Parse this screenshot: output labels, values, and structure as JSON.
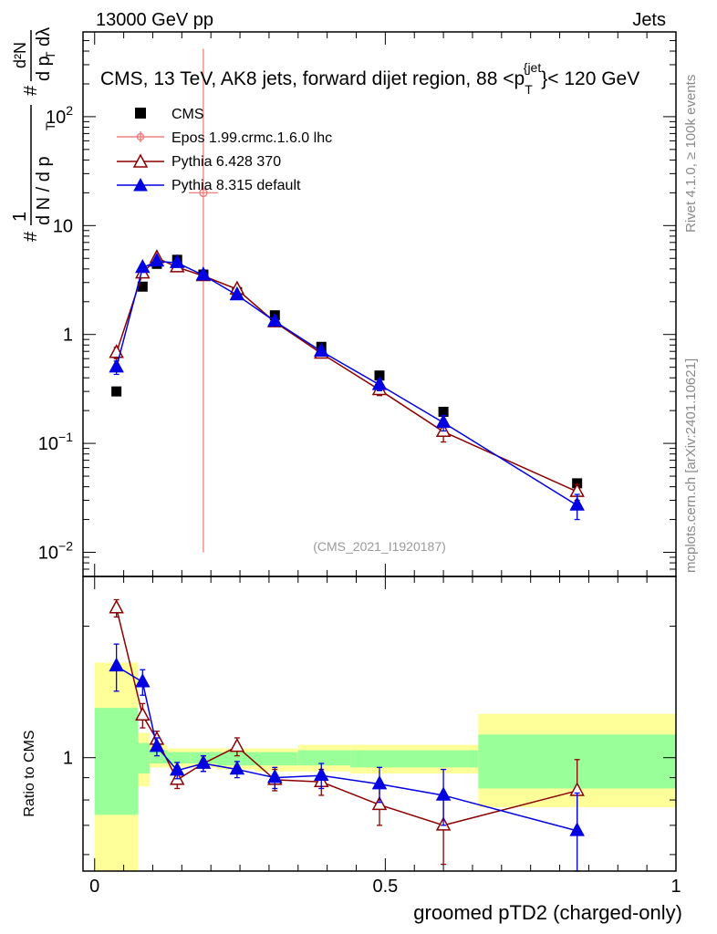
{
  "header": {
    "left": "13000 GeV pp",
    "right": "Jets"
  },
  "side_labels": {
    "rivet": "Rivet 4.1.0, ≥ 100k events",
    "mcplots": "mcplots.cern.ch [arXiv:2401.10621]"
  },
  "colors": {
    "cms": "#000000",
    "epos": "#f08080",
    "pythia6": "#8b0000",
    "pythia8": "#0000e0",
    "band_inner": "#99ff99",
    "band_outer": "#ffff99"
  },
  "chart_data": [
    {
      "type": "scatter",
      "panel": "main",
      "title_parts": {
        "before": "CMS, 13 TeV, AK8 jets, forward dijet region, 88 <p",
        "sub": "T",
        "sup": "{jet",
        "after": "}< 120 GeV"
      },
      "ylabel_parts": {
        "hash1": "#",
        "one": "1",
        "dN": "d N / d p",
        "T1": "T",
        "hash2": "#",
        "d2N": "d²N",
        "dpT": "d p",
        "T2": "T",
        "dl": "dλ"
      },
      "yscale": "log",
      "ylim": [
        0.006,
        600
      ],
      "xlim": [
        -0.02,
        1.0
      ],
      "y_ticks": [
        {
          "value": 0.01,
          "base": "10",
          "exp": "−2"
        },
        {
          "value": 0.1,
          "base": "10",
          "exp": "−1"
        },
        {
          "value": 1,
          "base": "1",
          "exp": ""
        },
        {
          "value": 10,
          "base": "10",
          "exp": ""
        },
        {
          "value": 100,
          "base": "10",
          "exp": "2"
        }
      ],
      "watermark": "(CMS_2021_I1920187)",
      "legend": [
        {
          "key": "cms",
          "label": "CMS"
        },
        {
          "key": "epos",
          "label": "Epos 1.99.crmc.1.6.0 lhc"
        },
        {
          "key": "pythia6",
          "label": "Pythia 6.428 370"
        },
        {
          "key": "pythia8",
          "label": "Pythia 8.315 default"
        }
      ],
      "series": [
        {
          "key": "cms",
          "name": "CMS",
          "x": [
            0.0375,
            0.0825,
            0.107,
            0.142,
            0.187,
            0.245,
            0.31,
            0.39,
            0.49,
            0.6,
            0.83
          ],
          "y": [
            0.3,
            2.75,
            4.45,
            4.85,
            3.55,
            2.45,
            1.5,
            0.77,
            0.42,
            0.195,
            0.043
          ]
        },
        {
          "key": "epos",
          "name": "Epos 1.99.crmc.1.6.0 lhc",
          "x": [
            0.187
          ],
          "y": [
            20
          ],
          "yerr_lo": [
            19.99
          ],
          "yerr_hi": [
            400
          ]
        },
        {
          "key": "pythia6",
          "name": "Pythia 6.428 370",
          "x": [
            0.0375,
            0.0825,
            0.107,
            0.142,
            0.187,
            0.245,
            0.31,
            0.39,
            0.49,
            0.6,
            0.83
          ],
          "y": [
            0.68,
            3.65,
            5.05,
            4.15,
            3.45,
            2.6,
            1.3,
            0.67,
            0.31,
            0.128,
            0.036
          ],
          "yerr_lo": [
            0.08,
            0.25,
            0.25,
            0.2,
            0.15,
            0.15,
            0.08,
            0.05,
            0.035,
            0.025,
            0.006
          ],
          "yerr_hi": [
            0.08,
            0.25,
            0.25,
            0.2,
            0.15,
            0.15,
            0.08,
            0.05,
            0.035,
            0.025,
            0.006
          ]
        },
        {
          "key": "pythia8",
          "name": "Pythia 8.315 default",
          "x": [
            0.0375,
            0.0825,
            0.107,
            0.142,
            0.187,
            0.245,
            0.31,
            0.39,
            0.49,
            0.6,
            0.83
          ],
          "y": [
            0.5,
            4.1,
            4.7,
            4.55,
            3.5,
            2.3,
            1.32,
            0.7,
            0.345,
            0.155,
            0.027
          ],
          "yerr_lo": [
            0.07,
            0.25,
            0.25,
            0.2,
            0.15,
            0.12,
            0.08,
            0.05,
            0.04,
            0.025,
            0.007
          ],
          "yerr_hi": [
            0.07,
            0.25,
            0.25,
            0.2,
            0.15,
            0.12,
            0.08,
            0.05,
            0.04,
            0.025,
            0.007
          ]
        }
      ]
    },
    {
      "type": "scatter",
      "panel": "ratio",
      "ylabel": "Ratio to CMS",
      "xlabel": "groomed pTD2 (charged-only)",
      "yscale": "log",
      "ylim": [
        0.55,
        2.6
      ],
      "xlim": [
        -0.02,
        1.0
      ],
      "y_ticks": [
        {
          "value": 1,
          "label": "1"
        }
      ],
      "x_ticks": [
        {
          "value": 0,
          "label": "0"
        },
        {
          "value": 0.5,
          "label": "0.5"
        },
        {
          "value": 1,
          "label": "1"
        }
      ],
      "bands": [
        {
          "x0": 0.0,
          "x1": 0.075,
          "in_lo": 0.74,
          "in_hi": 1.3,
          "out_lo": 0.5,
          "out_hi": 1.65
        },
        {
          "x0": 0.075,
          "x1": 0.095,
          "in_lo": 0.92,
          "in_hi": 1.08,
          "out_lo": 0.86,
          "out_hi": 1.14
        },
        {
          "x0": 0.095,
          "x1": 0.125,
          "in_lo": 0.97,
          "in_hi": 1.04,
          "out_lo": 0.95,
          "out_hi": 1.07
        },
        {
          "x0": 0.125,
          "x1": 0.165,
          "in_lo": 0.97,
          "in_hi": 1.03,
          "out_lo": 0.95,
          "out_hi": 1.05
        },
        {
          "x0": 0.165,
          "x1": 0.21,
          "in_lo": 0.97,
          "in_hi": 1.03,
          "out_lo": 0.95,
          "out_hi": 1.05
        },
        {
          "x0": 0.21,
          "x1": 0.275,
          "in_lo": 0.96,
          "in_hi": 1.03,
          "out_lo": 0.94,
          "out_hi": 1.05
        },
        {
          "x0": 0.275,
          "x1": 0.35,
          "in_lo": 0.96,
          "in_hi": 1.03,
          "out_lo": 0.93,
          "out_hi": 1.05
        },
        {
          "x0": 0.35,
          "x1": 0.44,
          "in_lo": 0.96,
          "in_hi": 1.04,
          "out_lo": 0.93,
          "out_hi": 1.07
        },
        {
          "x0": 0.44,
          "x1": 0.66,
          "in_lo": 0.95,
          "in_hi": 1.04,
          "out_lo": 0.92,
          "out_hi": 1.07
        },
        {
          "x0": 0.66,
          "x1": 1.0,
          "in_lo": 0.85,
          "in_hi": 1.13,
          "out_lo": 0.77,
          "out_hi": 1.26
        }
      ],
      "series": [
        {
          "key": "pythia6",
          "name": "Pythia 6.428 370",
          "x": [
            0.0375,
            0.0825,
            0.107,
            0.142,
            0.187,
            0.245,
            0.31,
            0.39,
            0.49,
            0.6,
            0.83
          ],
          "y": [
            2.2,
            1.25,
            1.1,
            0.89,
            0.97,
            1.06,
            0.89,
            0.88,
            0.78,
            0.7,
            0.84
          ],
          "yerr_lo": [
            0.1,
            0.08,
            0.05,
            0.04,
            0.04,
            0.05,
            0.05,
            0.06,
            0.08,
            0.13,
            0.15
          ],
          "yerr_hi": [
            0.1,
            0.08,
            0.05,
            0.04,
            0.04,
            0.05,
            0.05,
            0.06,
            0.08,
            0.13,
            0.15
          ]
        },
        {
          "key": "pythia8",
          "name": "Pythia 8.315 default",
          "x": [
            0.0375,
            0.0825,
            0.107,
            0.142,
            0.187,
            0.245,
            0.31,
            0.39,
            0.49,
            0.6,
            0.83
          ],
          "y": [
            1.62,
            1.49,
            1.06,
            0.935,
            0.97,
            0.94,
            0.9,
            0.91,
            0.87,
            0.82,
            0.68
          ],
          "yerr_lo": [
            0.2,
            0.1,
            0.05,
            0.04,
            0.04,
            0.04,
            0.05,
            0.06,
            0.08,
            0.12,
            0.15
          ],
          "yerr_hi": [
            0.2,
            0.1,
            0.05,
            0.04,
            0.04,
            0.04,
            0.05,
            0.06,
            0.08,
            0.12,
            0.15
          ]
        }
      ]
    }
  ]
}
